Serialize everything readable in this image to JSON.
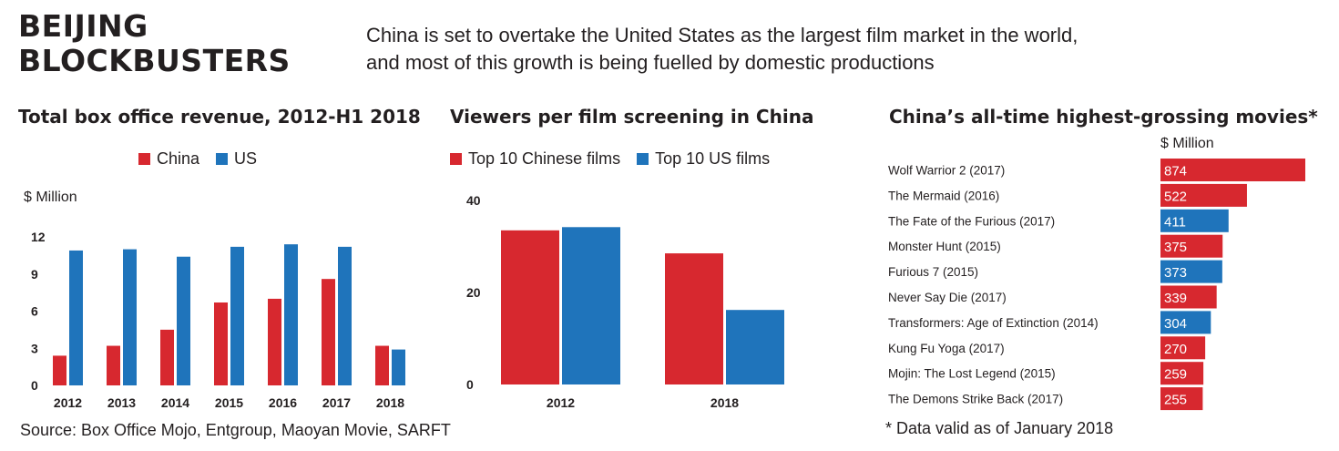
{
  "headline": [
    "BEIJING",
    "BLOCKBUSTERS"
  ],
  "subheadline": [
    "China is set to overtake the United States as the largest film market in the world,",
    "and most of this growth is being fuelled by domestic productions"
  ],
  "source": "Source: Box Office Mojo, Entgroup, Maoyan Movie, SARFT",
  "footnote": "* Data valid as of January 2018",
  "colors": {
    "china": "#d7282f",
    "us": "#1f74bb"
  },
  "chart_data": [
    {
      "type": "bar",
      "title": "Total box office revenue, 2012-H1 2018",
      "ylabel": "$ Million",
      "categories": [
        "2012",
        "2013",
        "2014",
        "2015",
        "2016",
        "2017",
        "2018"
      ],
      "series": [
        {
          "name": "China",
          "values": [
            2.4,
            3.2,
            4.5,
            6.7,
            7.0,
            8.6,
            3.2
          ]
        },
        {
          "name": "US",
          "values": [
            10.9,
            11.0,
            10.4,
            11.2,
            11.4,
            11.2,
            2.9
          ]
        }
      ],
      "yticks": [
        "0",
        "3",
        "6",
        "9",
        "12"
      ],
      "ylim": [
        0,
        12
      ],
      "legend": "top"
    },
    {
      "type": "bar",
      "title": "Viewers per film screening in China",
      "categories": [
        "2012",
        "2018"
      ],
      "series": [
        {
          "name": "Top 10 Chinese films",
          "values": [
            33.5,
            28.5
          ]
        },
        {
          "name": "Top 10 US films",
          "values": [
            34.2,
            16.2
          ]
        }
      ],
      "yticks": [
        "0",
        "20",
        "40"
      ],
      "ylim": [
        0,
        40
      ],
      "legend": "top"
    },
    {
      "type": "bar",
      "orientation": "horizontal",
      "title": "China’s all-time highest-grossing movies*",
      "unit": "$ Million",
      "items": [
        {
          "name": "Wolf Warrior 2 (2017)",
          "value": 874,
          "label": "874",
          "origin": "china"
        },
        {
          "name": "The Mermaid (2016)",
          "value": 522,
          "label": "522",
          "origin": "china"
        },
        {
          "name": "The Fate of the Furious (2017)",
          "value": 411,
          "label": "411",
          "origin": "us"
        },
        {
          "name": "Monster Hunt (2015)",
          "value": 375,
          "label": "375",
          "origin": "china"
        },
        {
          "name": "Furious 7 (2015)",
          "value": 373,
          "label": "373",
          "origin": "us"
        },
        {
          "name": "Never Say Die (2017)",
          "value": 339,
          "label": "339",
          "origin": "china"
        },
        {
          "name": "Transformers: Age of Extinction (2014)",
          "value": 304,
          "label": "304",
          "origin": "us"
        },
        {
          "name": "Kung Fu Yoga (2017)",
          "value": 270,
          "label": "270",
          "origin": "china"
        },
        {
          "name": "Mojin: The Lost Legend (2015)",
          "value": 259,
          "label": "259",
          "origin": "china"
        },
        {
          "name": "The Demons Strike Back (2017)",
          "value": 255,
          "label": "255",
          "origin": "china"
        }
      ]
    }
  ]
}
